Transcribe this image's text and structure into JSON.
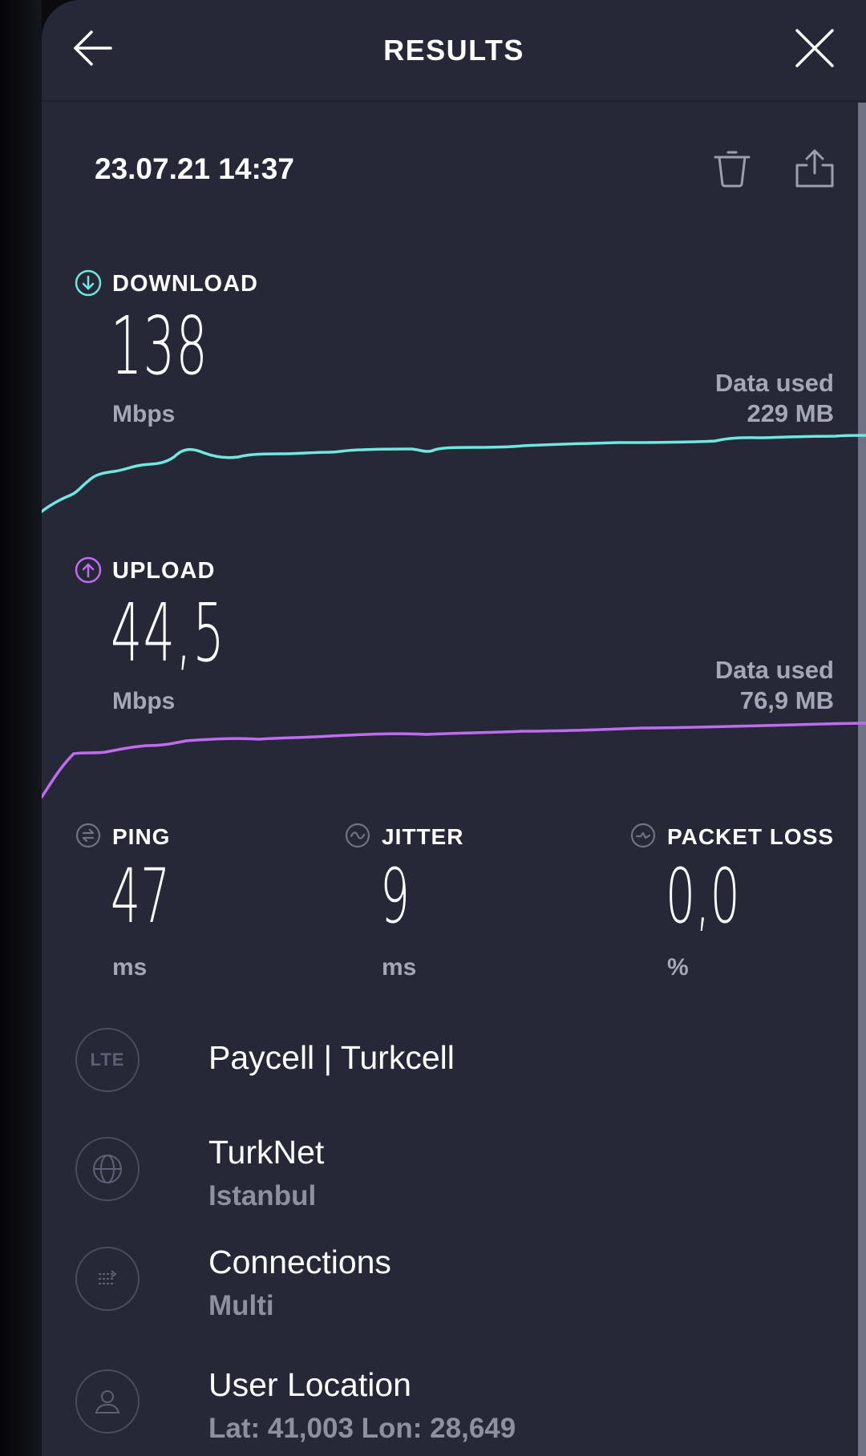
{
  "header": {
    "title": "RESULTS",
    "back_icon": "arrow-left-icon",
    "close_icon": "close-icon"
  },
  "result": {
    "timestamp": "23.07.21 14:37",
    "delete_icon": "trash-icon",
    "share_icon": "share-icon"
  },
  "download": {
    "label": "DOWNLOAD",
    "value": "138",
    "unit": "Mbps",
    "data_used_label": "Data used",
    "data_used_value": "229 MB",
    "color": "#6fe8e0"
  },
  "upload": {
    "label": "UPLOAD",
    "value": "44,5",
    "unit": "Mbps",
    "data_used_label": "Data used",
    "data_used_value": "76,9 MB",
    "color": "#bf6cf0"
  },
  "ping": {
    "label": "PING",
    "value": "47",
    "unit": "ms"
  },
  "jitter": {
    "label": "JITTER",
    "value": "9",
    "unit": "ms"
  },
  "packet_loss": {
    "label": "PACKET LOSS",
    "value": "0,0",
    "unit": "%"
  },
  "info": {
    "network": {
      "badge": "LTE",
      "primary": "Paycell | Turkcell"
    },
    "server": {
      "primary": "TurkNet",
      "secondary": "Istanbul"
    },
    "connections": {
      "primary": "Connections",
      "secondary": "Multi"
    },
    "location": {
      "primary": "User Location",
      "secondary": "Lat: 41,003 Lon: 28,649"
    }
  }
}
